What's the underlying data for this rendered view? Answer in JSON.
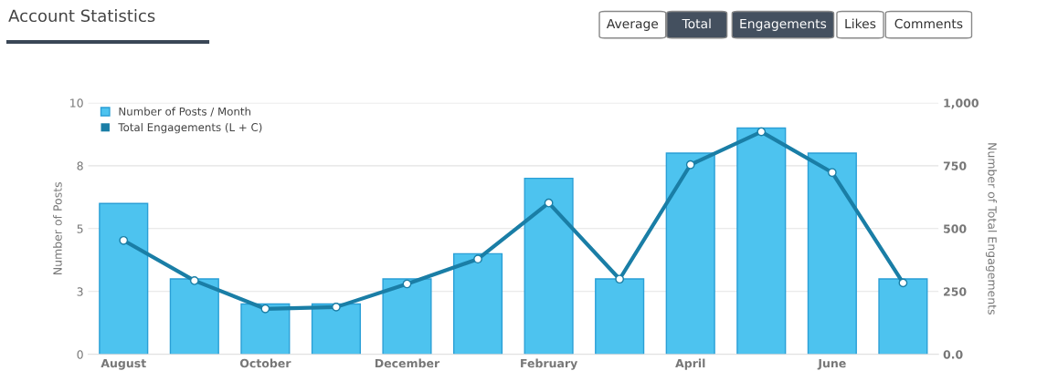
{
  "chart_data": {
    "type": "bar",
    "title": "Account Statistics",
    "annotations": [
      "Average",
      "Total",
      "Engagements",
      "Likes",
      "Comments"
    ],
    "categories": [
      "August",
      null,
      "October",
      null,
      "December",
      null,
      "February",
      null,
      "April",
      null,
      "June",
      null
    ],
    "series": [
      {
        "name": "Number of Posts / Month",
        "color": "#4dc3ef",
        "values": [
          6,
          3,
          2,
          2,
          3,
          4,
          7,
          3,
          8,
          9,
          8,
          3
        ]
      },
      {
        "name": "Total Engagements (L + C)",
        "type": "line",
        "axis": "y2",
        "color": "#1a7ea6",
        "values": [
          453,
          293,
          181,
          188,
          280,
          379,
          602,
          299,
          754,
          885,
          723,
          284
        ]
      }
    ],
    "ylabel": "Number of Posts",
    "y2label": "Number of Total Engagements",
    "ylim": [
      0,
      10
    ],
    "yticks": [
      0,
      {
        "value": 2.5,
        "label": "3"
      },
      5,
      {
        "value": 7.5,
        "label": "8"
      },
      10
    ],
    "y2lim": [
      0,
      1000
    ],
    "y2ticks": [
      {
        "value": 0,
        "label": "0.0"
      },
      250,
      500,
      750,
      {
        "value": 1000,
        "label": "1,000"
      }
    ],
    "grid": "y",
    "legend": "top left",
    "marker": "circle"
  }
}
